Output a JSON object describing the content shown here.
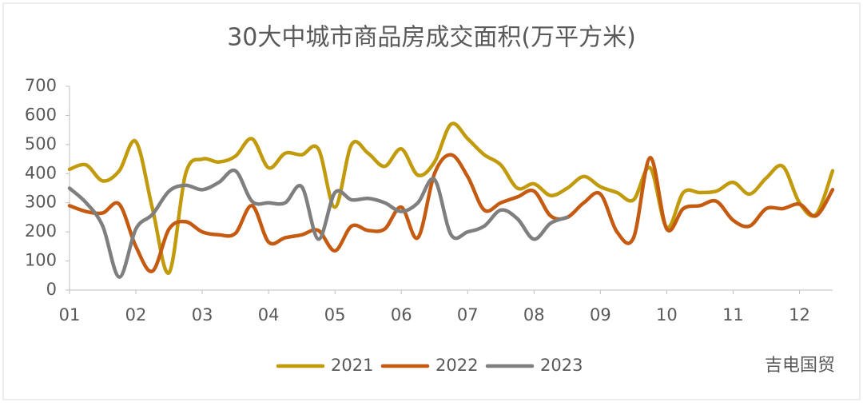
{
  "chart_data": {
    "type": "line",
    "title": "30大中城市商品房成交面积(万平方米)",
    "x": [
      1.0,
      1.25,
      1.5,
      1.75,
      2.0,
      2.25,
      2.5,
      2.75,
      3.0,
      3.25,
      3.5,
      3.75,
      4.0,
      4.25,
      4.5,
      4.75,
      5.0,
      5.25,
      5.5,
      5.75,
      6.0,
      6.25,
      6.5,
      6.75,
      7.0,
      7.25,
      7.5,
      7.75,
      8.0,
      8.25,
      8.5,
      8.75,
      9.0,
      9.25,
      9.5,
      9.75,
      10.0,
      10.25,
      10.5,
      10.75,
      11.0,
      11.25,
      11.5,
      11.75,
      12.0,
      12.25,
      12.5
    ],
    "series": [
      {
        "name": "2021",
        "color": "#c29b0c",
        "values": [
          415,
          430,
          375,
          410,
          510,
          280,
          60,
          400,
          450,
          440,
          460,
          520,
          420,
          470,
          465,
          485,
          285,
          500,
          470,
          425,
          485,
          395,
          440,
          570,
          520,
          465,
          430,
          350,
          365,
          325,
          350,
          390,
          355,
          335,
          310,
          420,
          215,
          335,
          335,
          340,
          370,
          330,
          385,
          425,
          300,
          260,
          410
        ]
      },
      {
        "name": "2022",
        "color": "#c55a11",
        "values": [
          290,
          270,
          265,
          295,
          150,
          65,
          210,
          235,
          200,
          190,
          195,
          290,
          165,
          180,
          190,
          205,
          135,
          220,
          205,
          210,
          285,
          180,
          400,
          465,
          390,
          275,
          300,
          320,
          340,
          255,
          250,
          300,
          330,
          200,
          180,
          455,
          210,
          280,
          290,
          305,
          240,
          220,
          280,
          280,
          295,
          255,
          345
        ]
      },
      {
        "name": "2023",
        "color": "#7f7f7f",
        "values": [
          350,
          300,
          220,
          45,
          210,
          260,
          340,
          360,
          345,
          370,
          410,
          305,
          300,
          300,
          355,
          175,
          335,
          310,
          315,
          300,
          270,
          300,
          380,
          190,
          200,
          220,
          275,
          245,
          175,
          230,
          250,
          null,
          null,
          null,
          null,
          null,
          null,
          null,
          null,
          null,
          null,
          null,
          null,
          null,
          null,
          null,
          null
        ]
      }
    ],
    "xlim": [
      1,
      12.5
    ],
    "xticks": [
      {
        "value": 1,
        "label": "01"
      },
      {
        "value": 2,
        "label": "02"
      },
      {
        "value": 3,
        "label": "03"
      },
      {
        "value": 4,
        "label": "04"
      },
      {
        "value": 5,
        "label": "05"
      },
      {
        "value": 6,
        "label": "06"
      },
      {
        "value": 7,
        "label": "07"
      },
      {
        "value": 8,
        "label": "08"
      },
      {
        "value": 9,
        "label": "09"
      },
      {
        "value": 10,
        "label": "10"
      },
      {
        "value": 11,
        "label": "11"
      },
      {
        "value": 12,
        "label": "12"
      }
    ],
    "ylim": [
      0,
      700
    ],
    "yticks": [
      0,
      100,
      200,
      300,
      400,
      500,
      600,
      700
    ],
    "grid": false,
    "legend": "bottom",
    "watermark": "吉电国贸"
  }
}
